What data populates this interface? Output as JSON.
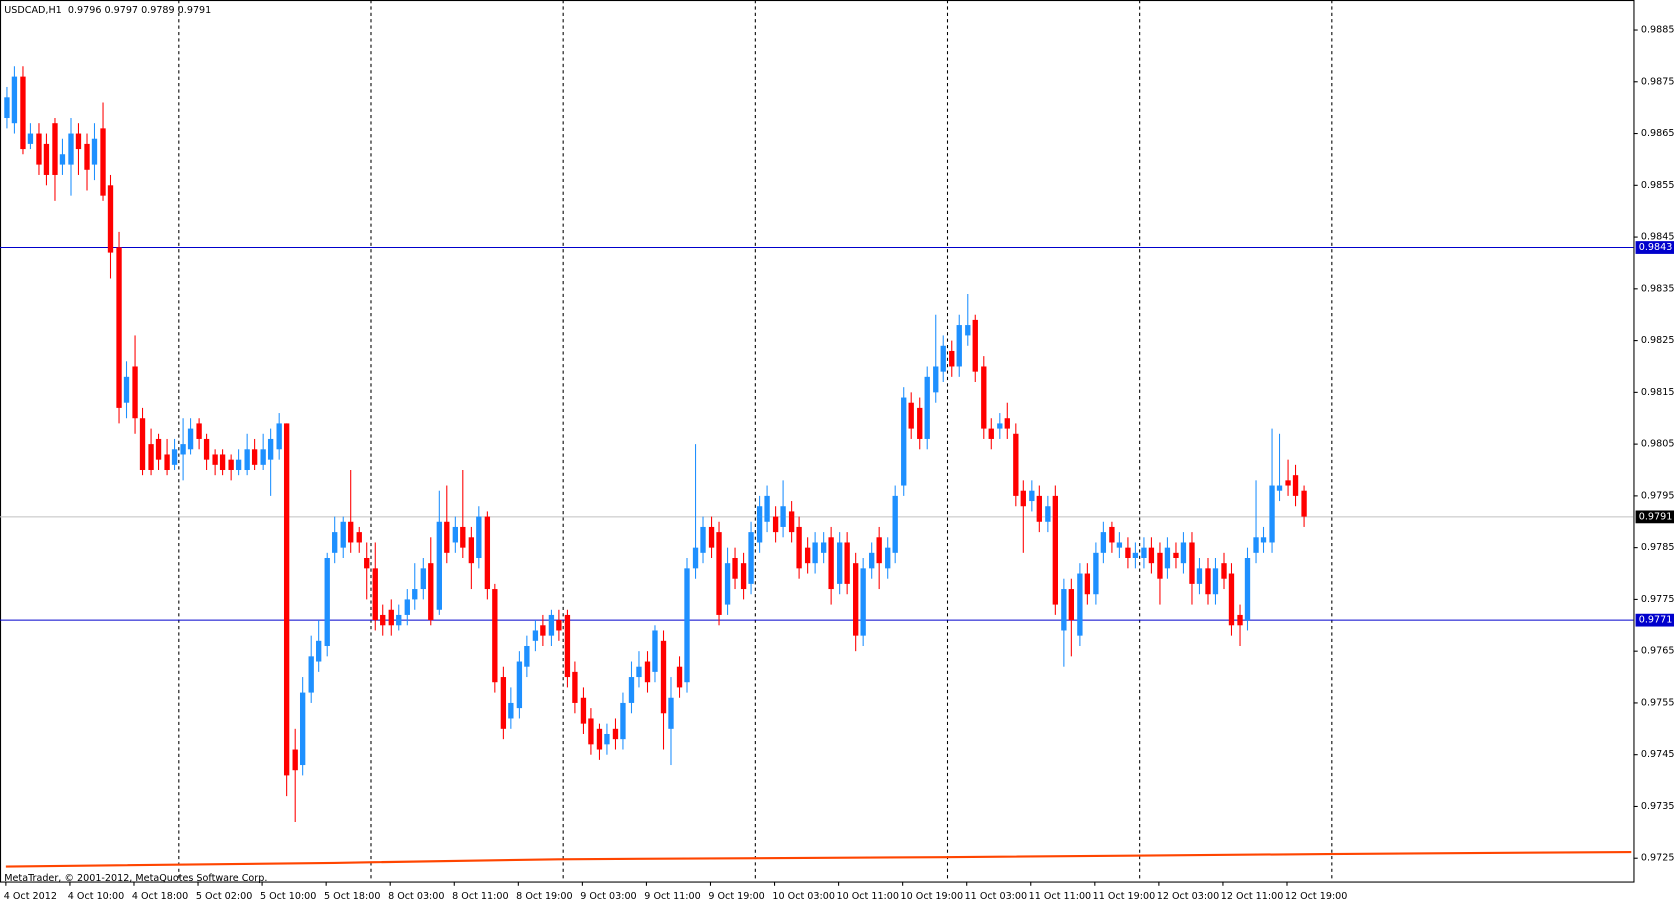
{
  "chart_data": {
    "type": "candlestick",
    "title": "USDCAD,H1  0.9796 0.9797 0.9789 0.9791",
    "footer": "MetaTrader, © 2001-2012, MetaQuotes Software Corp.",
    "bull_color": "#1e90ff",
    "bear_color": "#ff0000",
    "ylim": [
      0.97205,
      0.98908
    ],
    "yticks": [
      0.9885,
      0.9875,
      0.9865,
      0.9855,
      0.9845,
      0.9835,
      0.9825,
      0.9815,
      0.9805,
      0.9795,
      0.9785,
      0.9775,
      0.9765,
      0.9755,
      0.9745,
      0.9735,
      0.9725
    ],
    "levels": [
      {
        "value": 0.9843,
        "color": "#0000cc"
      },
      {
        "value": 0.9771,
        "color": "#0000cc"
      }
    ],
    "bid": {
      "value": 0.9791,
      "color": "#c0c0c0"
    },
    "ma": {
      "color": "#ff4500",
      "x": [
        0,
        41,
        69,
        117,
        165,
        203
      ],
      "values": [
        0.97234,
        0.97241,
        0.97248,
        0.97252,
        0.97258,
        0.97262
      ]
    },
    "categories": [
      "4 Oct 2012",
      null,
      null,
      null,
      null,
      null,
      null,
      null,
      "4 Oct 10:00",
      null,
      null,
      null,
      null,
      null,
      null,
      null,
      "4 Oct 18:00",
      null,
      null,
      null,
      null,
      null,
      null,
      null,
      "5 Oct 02:00",
      null,
      null,
      null,
      null,
      null,
      null,
      null,
      "5 Oct 10:00",
      null,
      null,
      null,
      null,
      null,
      null,
      null,
      "5 Oct 18:00",
      null,
      null,
      null,
      null,
      null,
      null,
      null,
      "8 Oct 03:00",
      null,
      null,
      null,
      null,
      null,
      null,
      null,
      "8 Oct 11:00",
      null,
      null,
      null,
      null,
      null,
      null,
      null,
      "8 Oct 19:00",
      null,
      null,
      null,
      null,
      null,
      null,
      null,
      "9 Oct 03:00",
      null,
      null,
      null,
      null,
      null,
      null,
      null,
      "9 Oct 11:00",
      null,
      null,
      null,
      null,
      null,
      null,
      null,
      "9 Oct 19:00",
      null,
      null,
      null,
      null,
      null,
      null,
      null,
      "10 Oct 03:00",
      null,
      null,
      null,
      null,
      null,
      null,
      null,
      "10 Oct 11:00",
      null,
      null,
      null,
      null,
      null,
      null,
      null,
      "10 Oct 19:00",
      null,
      null,
      null,
      null,
      null,
      null,
      null,
      "11 Oct 03:00",
      null,
      null,
      null,
      null,
      null,
      null,
      null,
      "11 Oct 11:00",
      null,
      null,
      null,
      null,
      null,
      null,
      null,
      "11 Oct 19:00",
      null,
      null,
      null,
      null,
      null,
      null,
      null,
      "12 Oct 03:00",
      null,
      null,
      null,
      null,
      null,
      null,
      null,
      "12 Oct 11:00",
      null,
      null,
      null,
      null,
      null,
      null,
      null,
      "12 Oct 19:00",
      null,
      null
    ],
    "open": [
      0.9868,
      0.9867,
      0.9876,
      0.9863,
      0.9865,
      0.9863,
      0.9867,
      0.9859,
      0.9859,
      0.9865,
      0.9863,
      0.9859,
      0.9866,
      0.9855,
      0.9843,
      0.9813,
      0.982,
      0.981,
      0.9805,
      0.9806,
      0.9803,
      0.9801,
      0.9803,
      0.9804,
      0.9809,
      0.9806,
      0.9803,
      0.9803,
      0.9802,
      0.98,
      0.98,
      0.9804,
      0.9801,
      0.9802,
      0.9804,
      0.9809,
      0.9746,
      0.9743,
      0.9757,
      0.9763,
      0.9766,
      0.9784,
      0.9785,
      0.979,
      0.9788,
      0.9783,
      0.9781,
      0.9772,
      0.9773,
      0.977,
      0.9772,
      0.9775,
      0.9777,
      0.9782,
      0.9773,
      0.979,
      0.9786,
      0.9789,
      0.9787,
      0.9783,
      0.9791,
      0.9777,
      0.976,
      0.9752,
      0.9754,
      0.9762,
      0.9767,
      0.977,
      0.9768,
      0.9771,
      0.9772,
      0.9761,
      0.9756,
      0.9752,
      0.975,
      0.9747,
      0.975,
      0.9748,
      0.9755,
      0.976,
      0.9763,
      0.9761,
      0.9767,
      0.975,
      0.9762,
      0.9759,
      0.9781,
      0.9784,
      0.9789,
      0.9788,
      0.9774,
      0.9783,
      0.9782,
      0.9778,
      0.9786,
      0.979,
      0.9791,
      0.9789,
      0.9792,
      0.9789,
      0.9785,
      0.9782,
      0.9784,
      0.9787,
      0.9778,
      0.9786,
      0.9782,
      0.9768,
      0.9781,
      0.9787,
      0.9781,
      0.9784,
      0.9797,
      0.9813,
      0.9812,
      0.9806,
      0.9815,
      0.9819,
      0.9823,
      0.982,
      0.9826,
      0.9829,
      0.982,
      0.9808,
      0.9808,
      0.981,
      0.9807,
      0.9796,
      0.9794,
      0.9795,
      0.979,
      0.9795,
      0.9769,
      0.9777,
      0.9768,
      0.978,
      0.9776,
      0.9784,
      0.9789,
      0.9785,
      0.9785,
      0.9783,
      0.9783,
      0.9785,
      0.9784,
      0.9781,
      0.9784,
      0.9782,
      0.9786,
      0.9778,
      0.9781,
      0.9776,
      0.9782,
      0.978,
      0.9772,
      0.9771,
      0.9784,
      0.9786,
      0.9786,
      0.9796,
      0.9798,
      0.9799,
      0.9796
    ],
    "high": [
      0.9874,
      0.9878,
      0.9878,
      0.9867,
      0.9867,
      0.9865,
      0.9868,
      0.9864,
      0.9868,
      0.9867,
      0.9865,
      0.9867,
      0.9871,
      0.9857,
      0.9846,
      0.9821,
      0.9826,
      0.9812,
      0.9808,
      0.9807,
      0.9806,
      0.9806,
      0.981,
      0.981,
      0.981,
      0.9807,
      0.9804,
      0.9804,
      0.9803,
      0.9804,
      0.9807,
      0.9806,
      0.9807,
      0.9808,
      0.9811,
      0.9809,
      0.975,
      0.976,
      0.9768,
      0.9771,
      0.9784,
      0.9791,
      0.9791,
      0.98,
      0.9789,
      0.9786,
      0.9786,
      0.9774,
      0.9775,
      0.9774,
      0.9777,
      0.9782,
      0.9783,
      0.9787,
      0.9796,
      0.9797,
      0.9791,
      0.98,
      0.9789,
      0.9793,
      0.9792,
      0.9778,
      0.9762,
      0.9758,
      0.9765,
      0.9768,
      0.9771,
      0.9772,
      0.9773,
      0.9773,
      0.9773,
      0.9763,
      0.9758,
      0.9754,
      0.9751,
      0.9751,
      0.9752,
      0.9757,
      0.9763,
      0.9765,
      0.9765,
      0.977,
      0.9769,
      0.976,
      0.9764,
      0.9783,
      0.9805,
      0.9791,
      0.9791,
      0.979,
      0.9785,
      0.9785,
      0.9784,
      0.979,
      0.9795,
      0.9797,
      0.9793,
      0.9798,
      0.9794,
      0.9791,
      0.9787,
      0.9788,
      0.9788,
      0.9789,
      0.9788,
      0.9788,
      0.9784,
      0.9783,
      0.9786,
      0.9789,
      0.9787,
      0.9797,
      0.9816,
      0.9815,
      0.9814,
      0.982,
      0.983,
      0.9826,
      0.9825,
      0.983,
      0.9834,
      0.983,
      0.9822,
      0.981,
      0.9811,
      0.9813,
      0.9809,
      0.9798,
      0.9798,
      0.9797,
      0.9795,
      0.9797,
      0.9779,
      0.9779,
      0.9782,
      0.9782,
      0.9786,
      0.979,
      0.979,
      0.9788,
      0.9787,
      0.9786,
      0.9787,
      0.9787,
      0.9786,
      0.9787,
      0.9786,
      0.9788,
      0.9788,
      0.9783,
      0.9783,
      0.9783,
      0.9784,
      0.9782,
      0.9774,
      0.9785,
      0.9798,
      0.9789,
      0.9808,
      0.9807,
      0.9802,
      0.9801,
      0.9797
    ],
    "low": [
      0.9866,
      0.9865,
      0.9861,
      0.9862,
      0.9857,
      0.9855,
      0.9852,
      0.9857,
      0.9853,
      0.9857,
      0.9854,
      0.9856,
      0.9852,
      0.9837,
      0.9809,
      0.981,
      0.9807,
      0.9799,
      0.9799,
      0.98,
      0.9799,
      0.98,
      0.9798,
      0.9803,
      0.9804,
      0.98,
      0.9799,
      0.9799,
      0.9798,
      0.9799,
      0.9799,
      0.98,
      0.98,
      0.9795,
      0.9802,
      0.9737,
      0.9732,
      0.9741,
      0.9755,
      0.9761,
      0.9764,
      0.9782,
      0.9783,
      0.9784,
      0.9784,
      0.9775,
      0.9769,
      0.9768,
      0.9768,
      0.9769,
      0.977,
      0.9773,
      0.9775,
      0.977,
      0.9772,
      0.9782,
      0.9784,
      0.9783,
      0.9777,
      0.9781,
      0.9775,
      0.9757,
      0.9748,
      0.975,
      0.9752,
      0.976,
      0.9765,
      0.9766,
      0.9766,
      0.9767,
      0.9758,
      0.9753,
      0.9749,
      0.9745,
      0.9744,
      0.9745,
      0.9746,
      0.9746,
      0.9753,
      0.9758,
      0.9757,
      0.9759,
      0.9746,
      0.9743,
      0.9756,
      0.9757,
      0.9779,
      0.9782,
      0.9783,
      0.977,
      0.9772,
      0.9777,
      0.9775,
      0.9776,
      0.9784,
      0.9788,
      0.9786,
      0.9787,
      0.9786,
      0.9779,
      0.978,
      0.978,
      0.9782,
      0.9774,
      0.9776,
      0.9776,
      0.9765,
      0.9766,
      0.9779,
      0.9777,
      0.9779,
      0.9782,
      0.9795,
      0.9806,
      0.9804,
      0.9804,
      0.9813,
      0.9817,
      0.9818,
      0.9818,
      0.9824,
      0.9817,
      0.9806,
      0.9804,
      0.9806,
      0.9806,
      0.9793,
      0.9784,
      0.9792,
      0.9788,
      0.9788,
      0.9772,
      0.9762,
      0.9764,
      0.9766,
      0.9774,
      0.9774,
      0.9782,
      0.9784,
      0.9783,
      0.9781,
      0.9781,
      0.9781,
      0.978,
      0.9774,
      0.9779,
      0.9781,
      0.978,
      0.9774,
      0.9776,
      0.9774,
      0.9774,
      0.9777,
      0.9768,
      0.9766,
      0.9769,
      0.9782,
      0.9784,
      0.9784,
      0.9794,
      0.9795,
      0.9793,
      0.9789
    ],
    "close": [
      0.9872,
      0.9876,
      0.9862,
      0.9865,
      0.9859,
      0.9857,
      0.9857,
      0.9861,
      0.9865,
      0.9862,
      0.9858,
      0.9864,
      0.9853,
      0.9842,
      0.9812,
      0.9818,
      0.981,
      0.98,
      0.98,
      0.9802,
      0.98,
      0.9804,
      0.9805,
      0.9808,
      0.9806,
      0.9802,
      0.9801,
      0.98,
      0.98,
      0.9802,
      0.9804,
      0.9801,
      0.9804,
      0.9806,
      0.9809,
      0.9741,
      0.9742,
      0.9757,
      0.9764,
      0.9767,
      0.9783,
      0.9788,
      0.979,
      0.9786,
      0.9786,
      0.9781,
      0.9771,
      0.977,
      0.977,
      0.9772,
      0.9775,
      0.9777,
      0.9781,
      0.9771,
      0.979,
      0.9784,
      0.9789,
      0.9785,
      0.9782,
      0.9791,
      0.9777,
      0.9759,
      0.975,
      0.9755,
      0.9763,
      0.9766,
      0.9769,
      0.9768,
      0.9772,
      0.9769,
      0.976,
      0.9755,
      0.9751,
      0.9747,
      0.9746,
      0.9749,
      0.9748,
      0.9755,
      0.976,
      0.9762,
      0.9759,
      0.9769,
      0.9753,
      0.9756,
      0.9758,
      0.9781,
      0.9785,
      0.9789,
      0.9785,
      0.9772,
      0.9782,
      0.9779,
      0.9777,
      0.9788,
      0.9793,
      0.9795,
      0.9788,
      0.9793,
      0.9788,
      0.9781,
      0.9782,
      0.9786,
      0.9786,
      0.9777,
      0.9786,
      0.9778,
      0.9768,
      0.9781,
      0.9784,
      0.9782,
      0.9785,
      0.9795,
      0.9814,
      0.9808,
      0.9806,
      0.9818,
      0.982,
      0.9824,
      0.982,
      0.9828,
      0.9828,
      0.9819,
      0.9808,
      0.9806,
      0.9809,
      0.9808,
      0.9795,
      0.9793,
      0.9796,
      0.979,
      0.9793,
      0.9774,
      0.9777,
      0.9771,
      0.978,
      0.9776,
      0.9784,
      0.9788,
      0.9786,
      0.9786,
      0.9783,
      0.9784,
      0.9785,
      0.9782,
      0.9779,
      0.9785,
      0.9783,
      0.9786,
      0.9778,
      0.9781,
      0.9776,
      0.9781,
      0.9779,
      0.977,
      0.977,
      0.9783,
      0.9787,
      0.9787,
      0.9797,
      0.9797,
      0.9797,
      0.9795,
      0.9791
    ]
  }
}
